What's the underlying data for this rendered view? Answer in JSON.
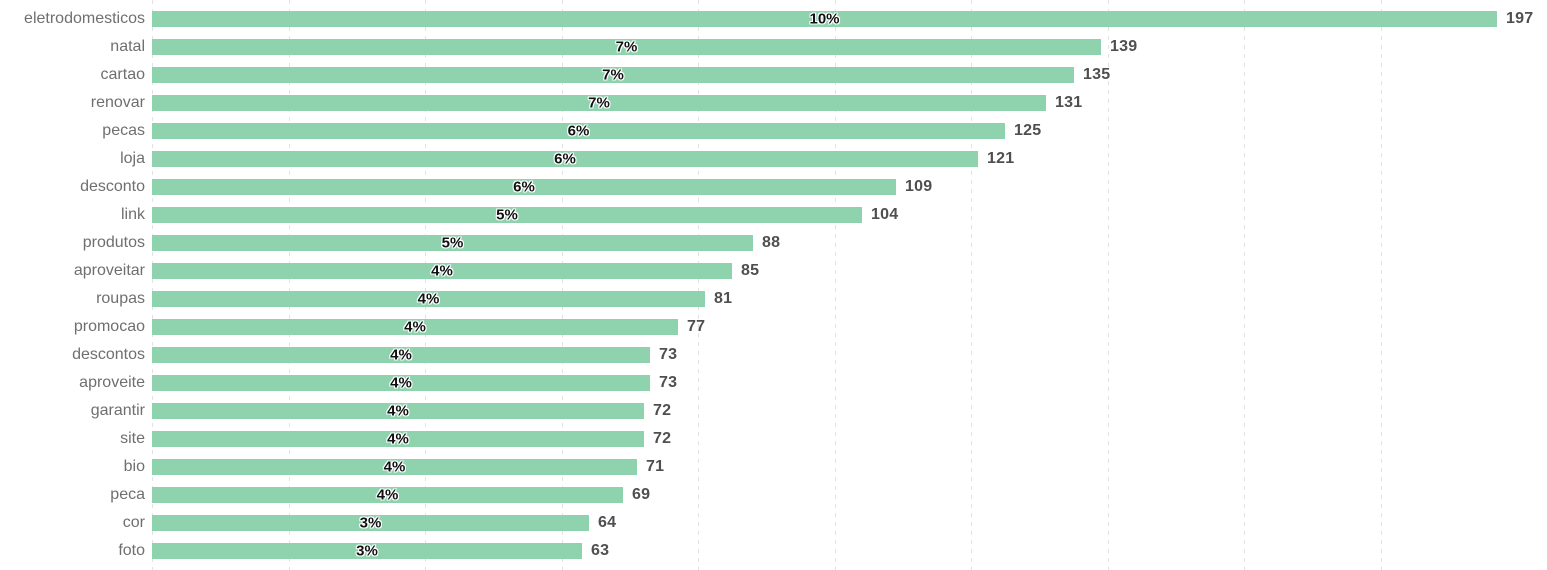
{
  "chart_data": {
    "type": "bar",
    "orientation": "horizontal",
    "title": "",
    "xlabel": "",
    "ylabel": "",
    "legend": "none",
    "grid": "vertical-dashed",
    "xlim": [
      0,
      197
    ],
    "gridline_values": [
      0,
      20,
      40,
      60,
      80,
      100,
      120,
      140,
      160,
      180
    ],
    "categories": [
      "eletrodomesticos",
      "natal",
      "cartao",
      "renovar",
      "pecas",
      "loja",
      "desconto",
      "link",
      "produtos",
      "aproveitar",
      "roupas",
      "promocao",
      "descontos",
      "aproveite",
      "garantir",
      "site",
      "bio",
      "peca",
      "cor",
      "foto"
    ],
    "values": [
      197,
      139,
      135,
      131,
      125,
      121,
      109,
      104,
      88,
      85,
      81,
      77,
      73,
      73,
      72,
      72,
      71,
      69,
      64,
      63
    ],
    "percent_labels": [
      "10%",
      "7%",
      "7%",
      "7%",
      "6%",
      "6%",
      "6%",
      "5%",
      "5%",
      "4%",
      "4%",
      "4%",
      "4%",
      "4%",
      "4%",
      "4%",
      "4%",
      "4%",
      "3%",
      "3%"
    ],
    "colors": {
      "bar": "#8ed2ae",
      "category_text": "#6f6f6f",
      "value_text": "#4f4f4f",
      "percent_text": "#111111",
      "gridline": "#e2e2e2",
      "background": "#ffffff"
    }
  }
}
